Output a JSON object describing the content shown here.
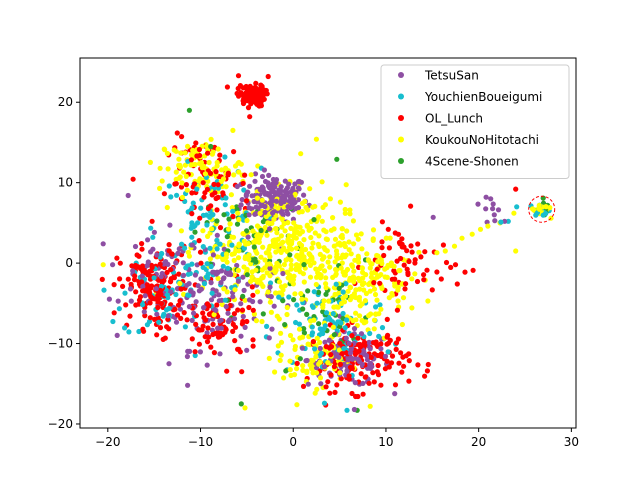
{
  "chart_data": {
    "type": "scatter",
    "title": "",
    "xlabel": "",
    "ylabel": "",
    "xlim": [
      -23,
      30.5
    ],
    "ylim": [
      -20.5,
      25.5
    ],
    "xticks": [
      -20,
      -10,
      0,
      10,
      20,
      30
    ],
    "yticks": [
      -20,
      -10,
      0,
      10,
      20
    ],
    "legend_position": "top-right",
    "series": [
      {
        "name": "TetsuSan",
        "color": "#8e4fa3",
        "clusters": [
          {
            "center": [
              -2,
              8
            ],
            "spread": [
              3.2,
              2.6
            ],
            "count": 170
          },
          {
            "center": [
              -8,
              -4
            ],
            "spread": [
              6,
              6
            ],
            "count": 120
          },
          {
            "center": [
              6,
              -12
            ],
            "spread": [
              4,
              3
            ],
            "count": 110
          },
          {
            "center": [
              -14,
              -2
            ],
            "spread": [
              4,
              5
            ],
            "count": 60
          },
          {
            "center": [
              21.5,
              6.5
            ],
            "spread": [
              1.0,
              1.5
            ],
            "count": 8
          }
        ],
        "points": [
          [
            -20.5,
            2.4
          ],
          [
            -17.8,
            8.4
          ],
          [
            15.1,
            5.7
          ],
          [
            -13.4,
            -12.5
          ],
          [
            20.8,
            8.2
          ],
          [
            21.3,
            8.0
          ],
          [
            22.8,
            5.2
          ],
          [
            6.6,
            -18.2
          ]
        ]
      },
      {
        "name": "YouchienBoueigumi",
        "color": "#17becf",
        "clusters": [
          {
            "center": [
              -9,
              4
            ],
            "spread": [
              5,
              7
            ],
            "count": 110
          },
          {
            "center": [
              4,
              -8
            ],
            "spread": [
              6,
              6
            ],
            "count": 90
          },
          {
            "center": [
              -14,
              -4
            ],
            "spread": [
              4,
              5
            ],
            "count": 50
          },
          {
            "center": [
              26.8,
              6.7
            ],
            "spread": [
              0.8,
              0.7
            ],
            "count": 14
          }
        ],
        "points": [
          [
            23.2,
            5.2
          ],
          [
            22.4,
            5.1
          ],
          [
            24.1,
            7.0
          ],
          [
            -10.4,
            9.2
          ],
          [
            5.8,
            -18.3
          ]
        ]
      },
      {
        "name": "OL_Lunch",
        "color": "#ff0000",
        "clusters": [
          {
            "center": [
              -4.5,
              20.8
            ],
            "spread": [
              1.3,
              1.2
            ],
            "count": 110
          },
          {
            "center": [
              -15,
              -3
            ],
            "spread": [
              3.5,
              4.5
            ],
            "count": 160
          },
          {
            "center": [
              -9,
              10
            ],
            "spread": [
              4,
              5
            ],
            "count": 80
          },
          {
            "center": [
              7,
              -12
            ],
            "spread": [
              5,
              3.5
            ],
            "count": 150
          },
          {
            "center": [
              -8,
              -8
            ],
            "spread": [
              4,
              4
            ],
            "count": 80
          },
          {
            "center": [
              12,
              0
            ],
            "spread": [
              4,
              5
            ],
            "count": 60
          }
        ],
        "points": [
          [
            -7.1,
            21.9
          ],
          [
            -5.9,
            23.3
          ],
          [
            -2.7,
            23.2
          ],
          [
            -4.7,
            18.2
          ],
          [
            24.0,
            9.2
          ],
          [
            19.4,
            -0.9
          ],
          [
            17.5,
            -0.2
          ],
          [
            17.7,
            -2.6
          ]
        ]
      },
      {
        "name": "KoukouNoHitotachi",
        "color": "#ffff00",
        "clusters": [
          {
            "center": [
              -2,
              2
            ],
            "spread": [
              7,
              7
            ],
            "count": 420
          },
          {
            "center": [
              7,
              -2
            ],
            "spread": [
              5,
              6
            ],
            "count": 200
          },
          {
            "center": [
              -10,
              12
            ],
            "spread": [
              4,
              3
            ],
            "count": 90
          },
          {
            "center": [
              2,
              -12
            ],
            "spread": [
              4,
              3
            ],
            "count": 80
          },
          {
            "center": [
              26.8,
              6.7
            ],
            "spread": [
              0.9,
              0.8
            ],
            "count": 22
          }
        ],
        "points": [
          [
            -20.5,
            -0.2
          ],
          [
            15.5,
            1.3
          ],
          [
            16.4,
            1.5
          ],
          [
            17.4,
            2.1
          ],
          [
            18.2,
            3.1
          ],
          [
            19.3,
            3.6
          ],
          [
            20.2,
            4.2
          ],
          [
            21.0,
            4.6
          ],
          [
            22.3,
            5.0
          ],
          [
            23.8,
            6.2
          ],
          [
            24.0,
            1.5
          ],
          [
            2.5,
            15.4
          ],
          [
            0.8,
            13.6
          ],
          [
            -5.6,
            12.3
          ],
          [
            -7.3,
            11.8
          ],
          [
            8.3,
            -17.8
          ],
          [
            0.4,
            -17.6
          ],
          [
            -5.2,
            -18.0
          ]
        ]
      },
      {
        "name": "4Scene-Shonen",
        "color": "#2ca02c",
        "clusters": [
          {
            "center": [
              -6,
              3
            ],
            "spread": [
              6,
              6
            ],
            "count": 55
          },
          {
            "center": [
              3,
              -6
            ],
            "spread": [
              5,
              5
            ],
            "count": 35
          },
          {
            "center": [
              26.8,
              6.7
            ],
            "spread": [
              0.8,
              0.7
            ],
            "count": 16
          }
        ],
        "points": [
          [
            -11.2,
            19.0
          ],
          [
            4.7,
            12.9
          ],
          [
            6.9,
            -18.3
          ],
          [
            -5.6,
            -17.5
          ],
          [
            -0.8,
            -13.4
          ],
          [
            7.8,
            0.4
          ],
          [
            -8.9,
            14.5
          ]
        ]
      }
    ]
  }
}
